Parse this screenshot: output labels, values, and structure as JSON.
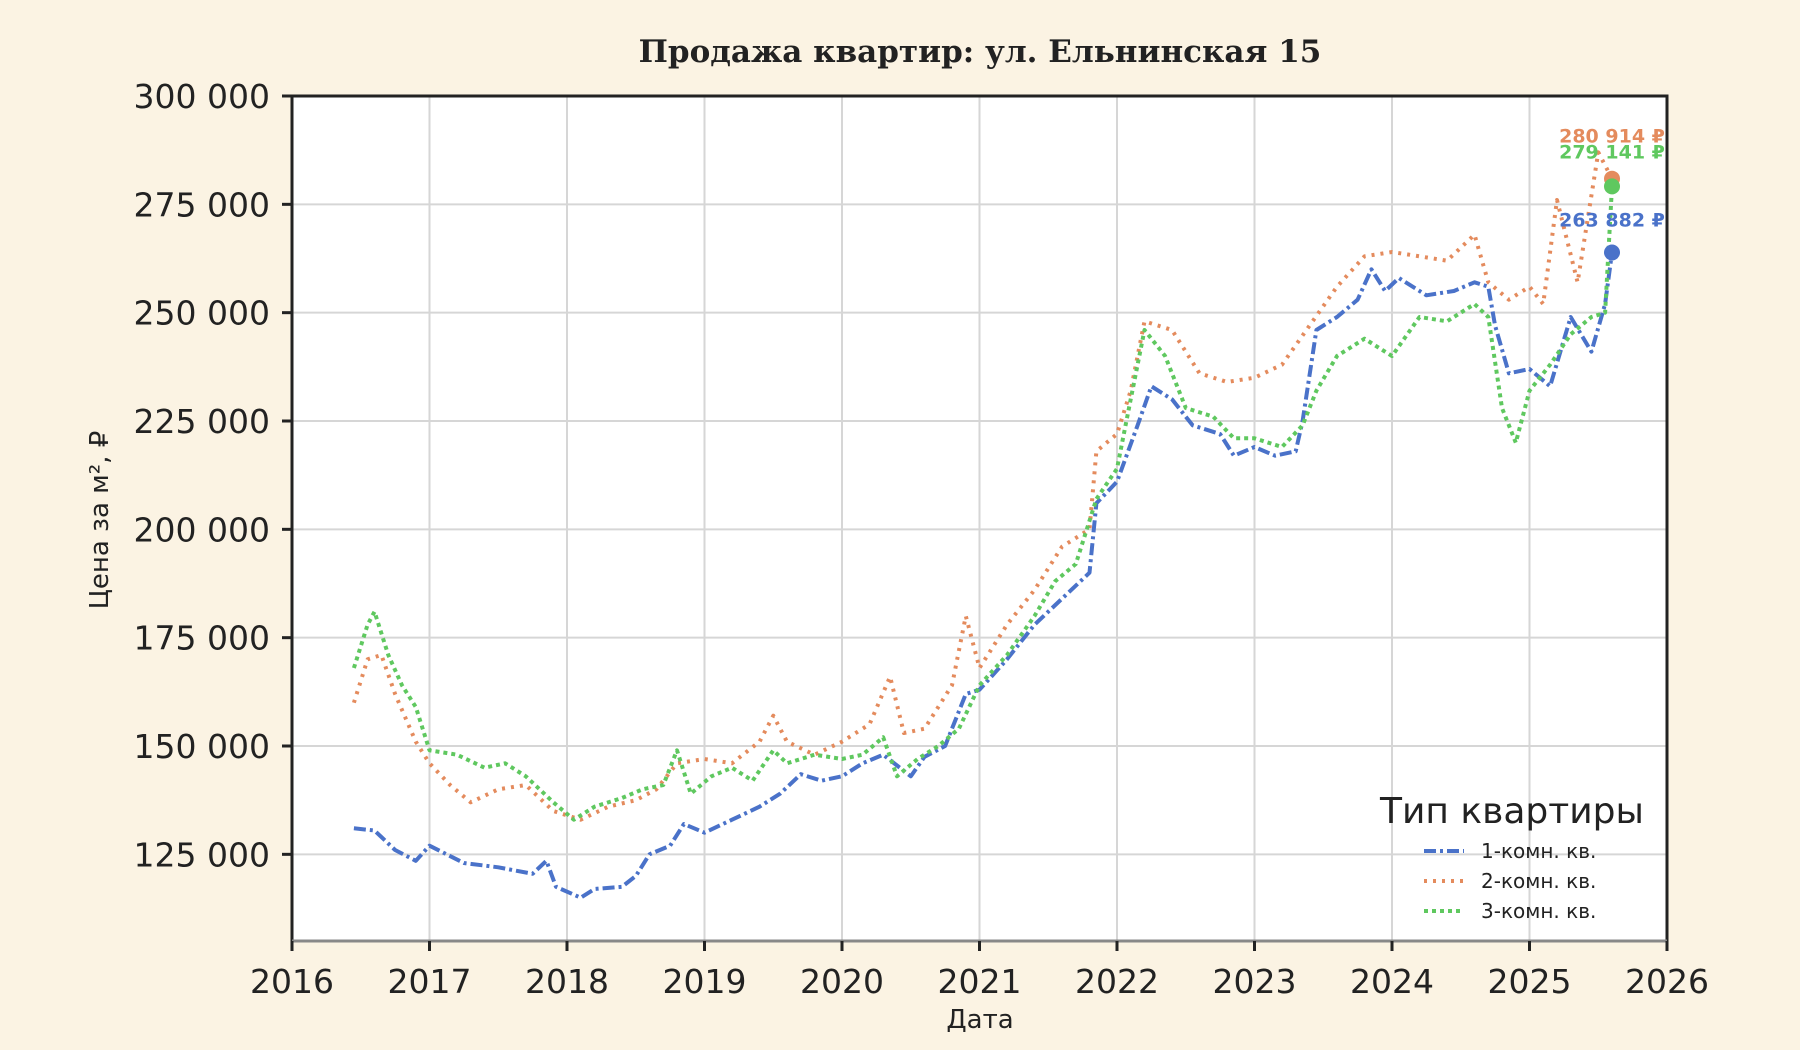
{
  "chart_data": {
    "type": "line",
    "title": "Продажа квартир: ул. Ельнинская 15",
    "xlabel": "Дата",
    "ylabel": "Цена за м², ₽",
    "xlim": [
      2016.0,
      2026.0
    ],
    "ylim": [
      105000,
      300000
    ],
    "x_ticks": [
      "2016",
      "2017",
      "2018",
      "2019",
      "2020",
      "2021",
      "2022",
      "2023",
      "2024",
      "2025",
      "2026"
    ],
    "y_ticks": [
      {
        "value": 125000,
        "label": "125 000"
      },
      {
        "value": 150000,
        "label": "150 000"
      },
      {
        "value": 175000,
        "label": "175 000"
      },
      {
        "value": 200000,
        "label": "200 000"
      },
      {
        "value": 225000,
        "label": "225 000"
      },
      {
        "value": 250000,
        "label": "250 000"
      },
      {
        "value": 275000,
        "label": "275 000"
      },
      {
        "value": 300000,
        "label": "300 000"
      }
    ],
    "grid": true,
    "legend": {
      "title": "Тип квартиры",
      "position": "bottom-right"
    },
    "series": [
      {
        "name": "1-комн. кв.",
        "color": "#4a72c9",
        "dash": "dashdot",
        "end_label": "263 882 ₽",
        "end_value": 263882,
        "points": [
          [
            2016.45,
            131000
          ],
          [
            2016.6,
            130500
          ],
          [
            2016.75,
            126000
          ],
          [
            2016.9,
            123500
          ],
          [
            2017.0,
            127000
          ],
          [
            2017.25,
            123000
          ],
          [
            2017.5,
            122000
          ],
          [
            2017.75,
            120500
          ],
          [
            2017.85,
            123500
          ],
          [
            2017.92,
            117500
          ],
          [
            2018.1,
            115000
          ],
          [
            2018.2,
            117000
          ],
          [
            2018.4,
            117500
          ],
          [
            2018.5,
            120000
          ],
          [
            2018.6,
            125000
          ],
          [
            2018.75,
            127000
          ],
          [
            2018.85,
            132000
          ],
          [
            2019.0,
            130000
          ],
          [
            2019.2,
            133000
          ],
          [
            2019.4,
            136000
          ],
          [
            2019.55,
            139000
          ],
          [
            2019.7,
            143500
          ],
          [
            2019.85,
            142000
          ],
          [
            2020.0,
            143000
          ],
          [
            2020.15,
            146000
          ],
          [
            2020.3,
            148000
          ],
          [
            2020.4,
            145500
          ],
          [
            2020.5,
            143000
          ],
          [
            2020.6,
            147500
          ],
          [
            2020.75,
            150000
          ],
          [
            2020.9,
            162000
          ],
          [
            2021.0,
            163000
          ],
          [
            2021.2,
            170000
          ],
          [
            2021.4,
            178000
          ],
          [
            2021.6,
            184000
          ],
          [
            2021.8,
            190000
          ],
          [
            2021.85,
            206000
          ],
          [
            2022.0,
            211000
          ],
          [
            2022.15,
            224000
          ],
          [
            2022.25,
            233000
          ],
          [
            2022.4,
            230000
          ],
          [
            2022.55,
            224000
          ],
          [
            2022.75,
            222000
          ],
          [
            2022.85,
            217000
          ],
          [
            2023.0,
            219000
          ],
          [
            2023.15,
            217000
          ],
          [
            2023.3,
            218000
          ],
          [
            2023.35,
            225000
          ],
          [
            2023.45,
            246000
          ],
          [
            2023.6,
            249000
          ],
          [
            2023.75,
            253000
          ],
          [
            2023.85,
            260000
          ],
          [
            2023.95,
            255000
          ],
          [
            2024.05,
            258000
          ],
          [
            2024.25,
            254000
          ],
          [
            2024.45,
            255000
          ],
          [
            2024.6,
            257000
          ],
          [
            2024.7,
            256000
          ],
          [
            2024.75,
            247000
          ],
          [
            2024.85,
            236000
          ],
          [
            2025.0,
            237000
          ],
          [
            2025.15,
            233000
          ],
          [
            2025.3,
            249000
          ],
          [
            2025.45,
            241000
          ],
          [
            2025.55,
            252000
          ],
          [
            2025.6,
            263882
          ]
        ]
      },
      {
        "name": "2-комн. кв.",
        "color": "#e48b5d",
        "dash": "dotted",
        "end_label": "280 914 ₽",
        "end_value": 280914,
        "points": [
          [
            2016.45,
            160000
          ],
          [
            2016.55,
            170000
          ],
          [
            2016.65,
            171000
          ],
          [
            2016.75,
            162000
          ],
          [
            2016.9,
            151000
          ],
          [
            2017.0,
            146000
          ],
          [
            2017.15,
            141000
          ],
          [
            2017.3,
            137000
          ],
          [
            2017.5,
            140000
          ],
          [
            2017.7,
            141000
          ],
          [
            2017.9,
            135000
          ],
          [
            2018.1,
            133000
          ],
          [
            2018.3,
            136000
          ],
          [
            2018.5,
            137500
          ],
          [
            2018.65,
            140000
          ],
          [
            2018.8,
            146000
          ],
          [
            2019.0,
            147000
          ],
          [
            2019.2,
            146000
          ],
          [
            2019.4,
            151000
          ],
          [
            2019.5,
            157000
          ],
          [
            2019.6,
            151000
          ],
          [
            2019.8,
            148000
          ],
          [
            2020.0,
            151000
          ],
          [
            2020.2,
            155000
          ],
          [
            2020.35,
            166000
          ],
          [
            2020.45,
            153000
          ],
          [
            2020.6,
            154000
          ],
          [
            2020.8,
            164000
          ],
          [
            2020.9,
            180000
          ],
          [
            2021.0,
            168000
          ],
          [
            2021.2,
            178000
          ],
          [
            2021.4,
            186000
          ],
          [
            2021.6,
            196000
          ],
          [
            2021.8,
            200000
          ],
          [
            2021.85,
            218000
          ],
          [
            2022.0,
            222000
          ],
          [
            2022.1,
            232000
          ],
          [
            2022.2,
            248000
          ],
          [
            2022.4,
            246000
          ],
          [
            2022.6,
            236000
          ],
          [
            2022.8,
            234000
          ],
          [
            2023.0,
            235000
          ],
          [
            2023.2,
            238000
          ],
          [
            2023.4,
            247000
          ],
          [
            2023.6,
            256000
          ],
          [
            2023.8,
            263000
          ],
          [
            2024.0,
            264000
          ],
          [
            2024.2,
            263000
          ],
          [
            2024.4,
            262000
          ],
          [
            2024.6,
            268000
          ],
          [
            2024.7,
            257000
          ],
          [
            2024.85,
            253000
          ],
          [
            2025.0,
            256000
          ],
          [
            2025.1,
            252000
          ],
          [
            2025.2,
            276000
          ],
          [
            2025.35,
            257000
          ],
          [
            2025.5,
            287000
          ],
          [
            2025.6,
            280914
          ]
        ]
      },
      {
        "name": "3-комн. кв.",
        "color": "#5fc85f",
        "dash": "dotted-dense",
        "end_label": "279 141 ₽",
        "end_value": 279141,
        "points": [
          [
            2016.45,
            168000
          ],
          [
            2016.55,
            178000
          ],
          [
            2016.6,
            181000
          ],
          [
            2016.7,
            171000
          ],
          [
            2016.8,
            164000
          ],
          [
            2016.9,
            159000
          ],
          [
            2017.0,
            149000
          ],
          [
            2017.2,
            148000
          ],
          [
            2017.4,
            145000
          ],
          [
            2017.55,
            146000
          ],
          [
            2017.7,
            143000
          ],
          [
            2017.9,
            137000
          ],
          [
            2018.05,
            133000
          ],
          [
            2018.2,
            136000
          ],
          [
            2018.4,
            138000
          ],
          [
            2018.55,
            140000
          ],
          [
            2018.7,
            141000
          ],
          [
            2018.8,
            149000
          ],
          [
            2018.9,
            139000
          ],
          [
            2019.05,
            143000
          ],
          [
            2019.2,
            145000
          ],
          [
            2019.35,
            142000
          ],
          [
            2019.5,
            149000
          ],
          [
            2019.6,
            146000
          ],
          [
            2019.8,
            148000
          ],
          [
            2020.0,
            147000
          ],
          [
            2020.15,
            148000
          ],
          [
            2020.3,
            152000
          ],
          [
            2020.4,
            143000
          ],
          [
            2020.55,
            147000
          ],
          [
            2020.7,
            150000
          ],
          [
            2020.85,
            154000
          ],
          [
            2021.0,
            164000
          ],
          [
            2021.2,
            171000
          ],
          [
            2021.4,
            180000
          ],
          [
            2021.55,
            188000
          ],
          [
            2021.7,
            192000
          ],
          [
            2021.85,
            207000
          ],
          [
            2022.0,
            214000
          ],
          [
            2022.1,
            230000
          ],
          [
            2022.2,
            246000
          ],
          [
            2022.35,
            240000
          ],
          [
            2022.5,
            228000
          ],
          [
            2022.7,
            226000
          ],
          [
            2022.85,
            221000
          ],
          [
            2023.0,
            221000
          ],
          [
            2023.2,
            219000
          ],
          [
            2023.35,
            224000
          ],
          [
            2023.45,
            232000
          ],
          [
            2023.6,
            240000
          ],
          [
            2023.8,
            244000
          ],
          [
            2024.0,
            240000
          ],
          [
            2024.2,
            249000
          ],
          [
            2024.4,
            248000
          ],
          [
            2024.6,
            252000
          ],
          [
            2024.7,
            249000
          ],
          [
            2024.8,
            228000
          ],
          [
            2024.9,
            220000
          ],
          [
            2025.0,
            232000
          ],
          [
            2025.15,
            238000
          ],
          [
            2025.3,
            245000
          ],
          [
            2025.45,
            249000
          ],
          [
            2025.55,
            250000
          ],
          [
            2025.6,
            279141
          ]
        ]
      }
    ]
  }
}
